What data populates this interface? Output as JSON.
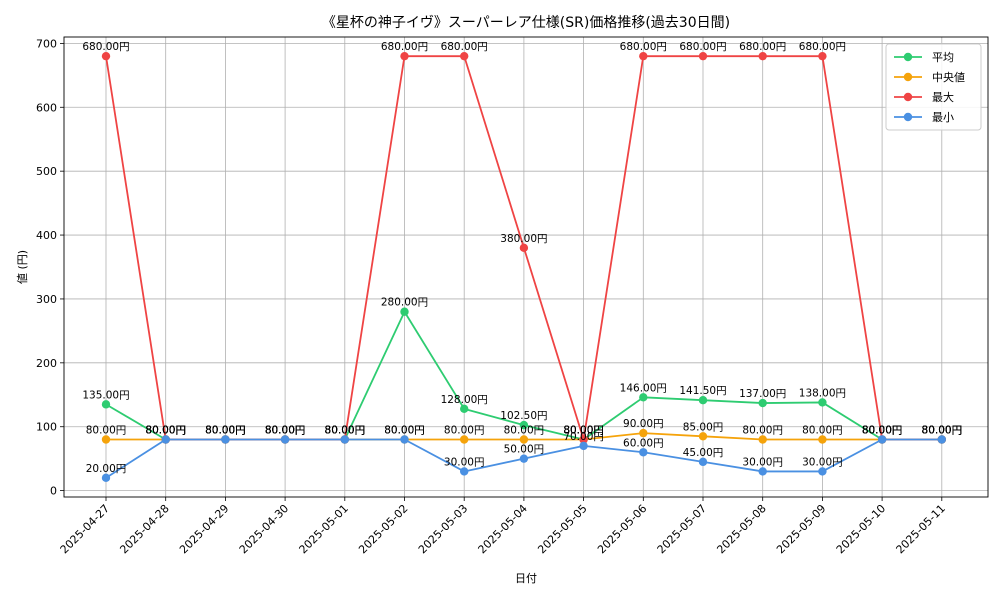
{
  "chart_data": {
    "type": "line",
    "title": "《星杯の神子イヴ》スーパーレア仕様(SR)価格推移(過去30日間)",
    "xlabel": "日付",
    "ylabel": "値 (円)",
    "ylim": [
      -10,
      710
    ],
    "yticks": [
      0,
      100,
      200,
      300,
      400,
      500,
      600,
      700
    ],
    "grid": true,
    "legend_position": "top-right",
    "value_suffix": "円",
    "categories": [
      "2025-04-27",
      "2025-04-28",
      "2025-04-29",
      "2025-04-30",
      "2025-05-01",
      "2025-05-02",
      "2025-05-03",
      "2025-05-04",
      "2025-05-05",
      "2025-05-06",
      "2025-05-07",
      "2025-05-08",
      "2025-05-09",
      "2025-05-10",
      "2025-05-11"
    ],
    "series": [
      {
        "name": "平均",
        "color": "#2ecc71",
        "values": [
          135,
          80,
          80,
          80,
          80,
          280,
          128,
          102.5,
          80,
          146,
          141.5,
          137,
          138,
          80,
          80
        ],
        "labels": [
          "135.00円",
          "80.00円",
          "80.00円",
          "80.00円",
          "80.00円",
          "280.00円",
          "128.00円",
          "102.50円",
          "80.00円",
          "146.00円",
          "141.50円",
          "137.00円",
          "138.00円",
          "80.00円",
          "80.00円"
        ]
      },
      {
        "name": "中央値",
        "color": "#f5a30b",
        "values": [
          80,
          80,
          80,
          80,
          80,
          80,
          80,
          80,
          80,
          90,
          85,
          80,
          80,
          80,
          80
        ],
        "labels": [
          "80.00円",
          "80.00円",
          "80.00円",
          "80.00円",
          "80.00円",
          "80.00円",
          "80.00円",
          "80.00円",
          "80.00円",
          "90.00円",
          "85.00円",
          "80.00円",
          "80.00円",
          "80.00円",
          "80.00円"
        ]
      },
      {
        "name": "最大",
        "color": "#ef4444",
        "values": [
          680,
          80,
          80,
          80,
          80,
          680,
          680,
          380,
          80,
          680,
          680,
          680,
          680,
          80,
          80
        ],
        "labels": [
          "680.00円",
          "80.00円",
          "80.00円",
          "80.00円",
          "80.00円",
          "680.00円",
          "680.00円",
          "380.00円",
          "80.00円",
          "680.00円",
          "680.00円",
          "680.00円",
          "680.00円",
          "80.00円",
          "80.00円"
        ]
      },
      {
        "name": "最小",
        "color": "#4a90e2",
        "values": [
          20,
          80,
          80,
          80,
          80,
          80,
          30,
          50,
          70,
          60,
          45,
          30,
          30,
          80,
          80
        ],
        "labels": [
          "20.00円",
          "80.00円",
          "80.00円",
          "80.00円",
          "80.00円",
          "80.00円",
          "30.00円",
          "50.00円",
          "70.00円",
          "60.00円",
          "45.00円",
          "30.00円",
          "30.00円",
          "80.00円",
          "80.00円"
        ]
      }
    ]
  }
}
